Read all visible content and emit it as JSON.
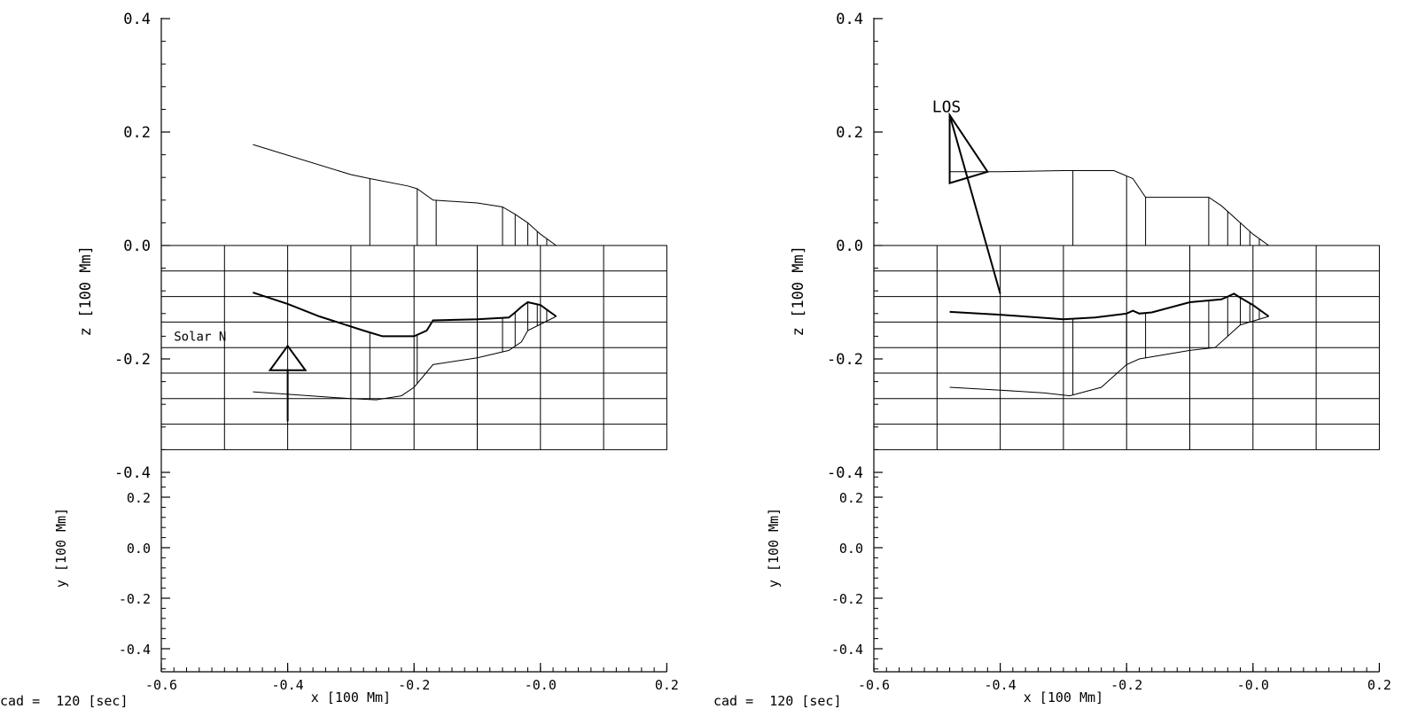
{
  "chart_data": [
    {
      "panel": "left",
      "type": "line",
      "x_axis": {
        "label": "x [100 Mm]",
        "range": [
          -0.6,
          0.2
        ],
        "ticks": [
          "-0.6",
          "-0.4",
          "-0.2",
          "-0.0",
          "0.2"
        ]
      },
      "z_axis": {
        "label": "z [100 Mm]",
        "range": [
          -0.4,
          0.4
        ],
        "ticks": [
          "0.4",
          "0.2",
          "0.0",
          "-0.2",
          "-0.4"
        ]
      },
      "y_axis": {
        "label": "y [100 Mm]",
        "range": [
          -0.5,
          0.3
        ],
        "ticks": [
          "0.2",
          "0.0",
          "-0.2",
          "-0.4"
        ]
      },
      "grid": {
        "x_range": [
          -0.6,
          0.2
        ],
        "z_range": [
          -0.36,
          0.0
        ],
        "x_step": 0.1,
        "z_step": 0.045
      },
      "top_profile": {
        "x": [
          -0.455,
          -0.3,
          -0.27,
          -0.21,
          -0.195,
          -0.17,
          -0.1,
          -0.06,
          -0.04,
          -0.02,
          0.0,
          0.025
        ],
        "z": [
          0.178,
          0.125,
          0.118,
          0.105,
          0.1,
          0.08,
          0.075,
          0.068,
          0.055,
          0.04,
          0.02,
          0.0
        ]
      },
      "top_verticals_x": [
        -0.27,
        -0.195,
        -0.165,
        -0.06,
        -0.04,
        -0.02,
        -0.005,
        0.01
      ],
      "thick_line": {
        "x": [
          -0.455,
          -0.4,
          -0.35,
          -0.28,
          -0.25,
          -0.2,
          -0.18,
          -0.17,
          -0.1,
          -0.05,
          -0.04,
          -0.03,
          -0.02,
          0.0,
          0.025
        ],
        "z": [
          -0.083,
          -0.103,
          -0.125,
          -0.15,
          -0.16,
          -0.16,
          -0.15,
          -0.132,
          -0.13,
          -0.127,
          -0.118,
          -0.108,
          -0.1,
          -0.105,
          -0.125
        ]
      },
      "bottom_profile": {
        "x": [
          -0.455,
          -0.3,
          -0.26,
          -0.22,
          -0.2,
          -0.17,
          -0.1,
          -0.05,
          -0.03,
          -0.02,
          0.025
        ],
        "z": [
          -0.258,
          -0.27,
          -0.272,
          -0.265,
          -0.25,
          -0.21,
          -0.198,
          -0.185,
          -0.17,
          -0.15,
          -0.125
        ]
      },
      "bottom_verticals_x": [
        -0.27,
        -0.195,
        -0.06,
        -0.04,
        -0.02,
        -0.005,
        0.01
      ],
      "annotation_label": "Solar N",
      "footer": "cad =  120 [sec]"
    },
    {
      "panel": "right",
      "type": "line",
      "x_axis": {
        "label": "x [100 Mm]",
        "range": [
          -0.6,
          0.2
        ],
        "ticks": [
          "-0.6",
          "-0.4",
          "-0.2",
          "-0.0",
          "0.2"
        ]
      },
      "z_axis": {
        "label": "z [100 Mm]",
        "range": [
          -0.4,
          0.4
        ],
        "ticks": [
          "0.4",
          "0.2",
          "0.0",
          "-0.2",
          "-0.4"
        ]
      },
      "y_axis": {
        "label": "y [100 Mm]",
        "range": [
          -0.5,
          0.3
        ],
        "ticks": [
          "0.2",
          "0.0",
          "-0.2",
          "-0.4"
        ]
      },
      "grid": {
        "x_range": [
          -0.6,
          0.2
        ],
        "z_range": [
          -0.36,
          0.0
        ],
        "x_step": 0.1,
        "z_step": 0.045
      },
      "top_profile": {
        "x": [
          -0.48,
          -0.4,
          -0.3,
          -0.22,
          -0.19,
          -0.17,
          -0.1,
          -0.07,
          -0.05,
          -0.02,
          0.0,
          0.025
        ],
        "z": [
          0.13,
          0.13,
          0.132,
          0.132,
          0.118,
          0.085,
          0.085,
          0.085,
          0.07,
          0.04,
          0.02,
          0.0
        ]
      },
      "top_verticals_x": [
        -0.285,
        -0.2,
        -0.17,
        -0.07,
        -0.04,
        -0.02,
        -0.005,
        0.01
      ],
      "thick_line": {
        "x": [
          -0.48,
          -0.4,
          -0.3,
          -0.25,
          -0.2,
          -0.19,
          -0.18,
          -0.16,
          -0.1,
          -0.05,
          -0.04,
          -0.03,
          -0.02,
          0.0,
          0.025
        ],
        "z": [
          -0.117,
          -0.122,
          -0.13,
          -0.127,
          -0.12,
          -0.115,
          -0.12,
          -0.118,
          -0.1,
          -0.095,
          -0.09,
          -0.085,
          -0.092,
          -0.105,
          -0.125
        ]
      },
      "bottom_profile": {
        "x": [
          -0.48,
          -0.4,
          -0.33,
          -0.29,
          -0.24,
          -0.2,
          -0.18,
          -0.1,
          -0.06,
          -0.04,
          -0.02,
          0.025
        ],
        "z": [
          -0.25,
          -0.255,
          -0.26,
          -0.265,
          -0.25,
          -0.21,
          -0.2,
          -0.185,
          -0.18,
          -0.16,
          -0.14,
          -0.125
        ]
      },
      "bottom_verticals_x": [
        -0.285,
        -0.2,
        -0.17,
        -0.07,
        -0.04,
        -0.02,
        -0.005,
        0.01
      ],
      "annotation_label": "LOS",
      "footer": "cad =  120 [sec]"
    }
  ]
}
